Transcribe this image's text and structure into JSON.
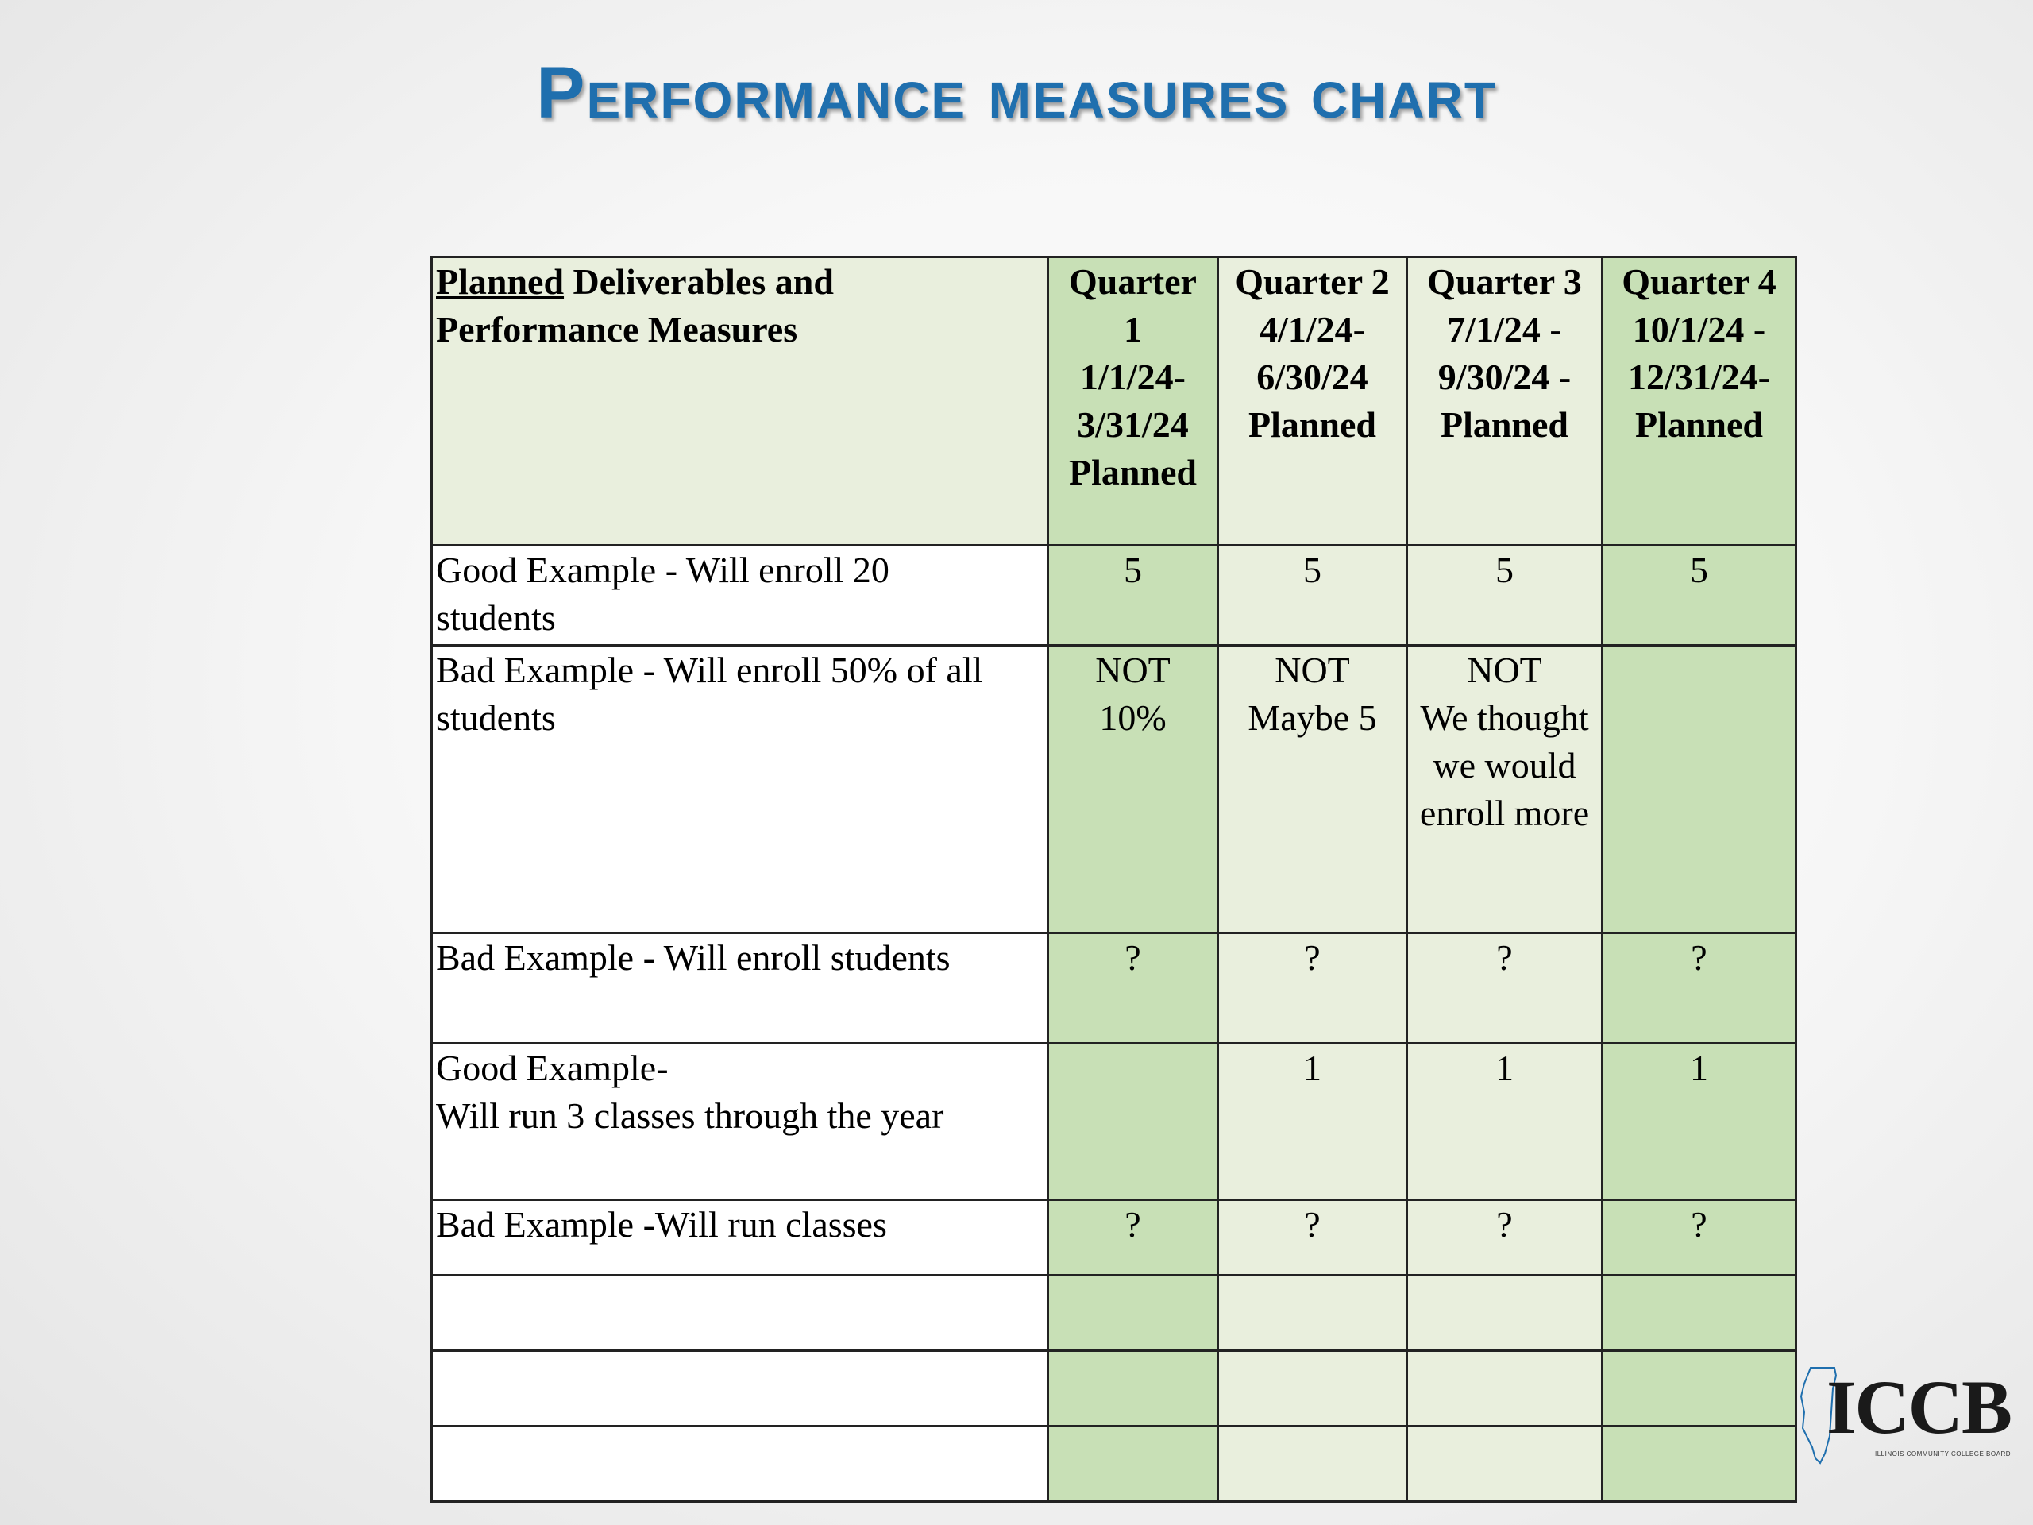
{
  "title": "Performance measures chart",
  "table": {
    "header": {
      "measure_line1_underlined": "Planned",
      "measure_line1_rest": " Deliverables and",
      "measure_line2": "Performance Measures",
      "quarters": [
        [
          "Quarter",
          "1",
          "1/1/24-",
          "3/31/24",
          "Planned"
        ],
        [
          "Quarter 2",
          "4/1/24-",
          "6/30/24",
          "Planned"
        ],
        [
          "Quarter 3",
          "7/1/24 -",
          "9/30/24 -",
          "Planned"
        ],
        [
          "Quarter 4",
          "10/1/24 -",
          "12/31/24-",
          "Planned"
        ]
      ]
    },
    "rows": [
      {
        "measure": [
          "Good Example - Will enroll 20",
          "students"
        ],
        "q": [
          [
            "5"
          ],
          [
            "5"
          ],
          [
            "5"
          ],
          [
            "5"
          ]
        ]
      },
      {
        "measure": [
          "Bad Example - Will enroll 50% of all",
          "students"
        ],
        "q": [
          [
            "NOT",
            "10%"
          ],
          [
            "NOT",
            "Maybe 5"
          ],
          [
            "NOT",
            "We thought",
            "we would",
            "enroll more"
          ],
          []
        ]
      },
      {
        "measure": [
          "Bad Example - Will enroll students"
        ],
        "q": [
          [
            "?"
          ],
          [
            "?"
          ],
          [
            "?"
          ],
          [
            "?"
          ]
        ]
      },
      {
        "measure": [
          "Good Example-",
          "Will run 3 classes through the year"
        ],
        "q": [
          [],
          [
            "1"
          ],
          [
            "1"
          ],
          [
            "1"
          ]
        ]
      },
      {
        "measure": [
          "Bad Example -Will run classes"
        ],
        "q": [
          [
            "?"
          ],
          [
            "?"
          ],
          [
            "?"
          ],
          [
            "?"
          ]
        ]
      },
      {
        "measure": [],
        "q": [
          [],
          [],
          [],
          []
        ]
      },
      {
        "measure": [],
        "q": [
          [],
          [],
          [],
          []
        ]
      },
      {
        "measure": [],
        "q": [
          [],
          [],
          [],
          []
        ]
      }
    ]
  },
  "logo": {
    "text": "ICCB",
    "subtext": "ILLINOIS COMMUNITY COLLEGE BOARD"
  }
}
